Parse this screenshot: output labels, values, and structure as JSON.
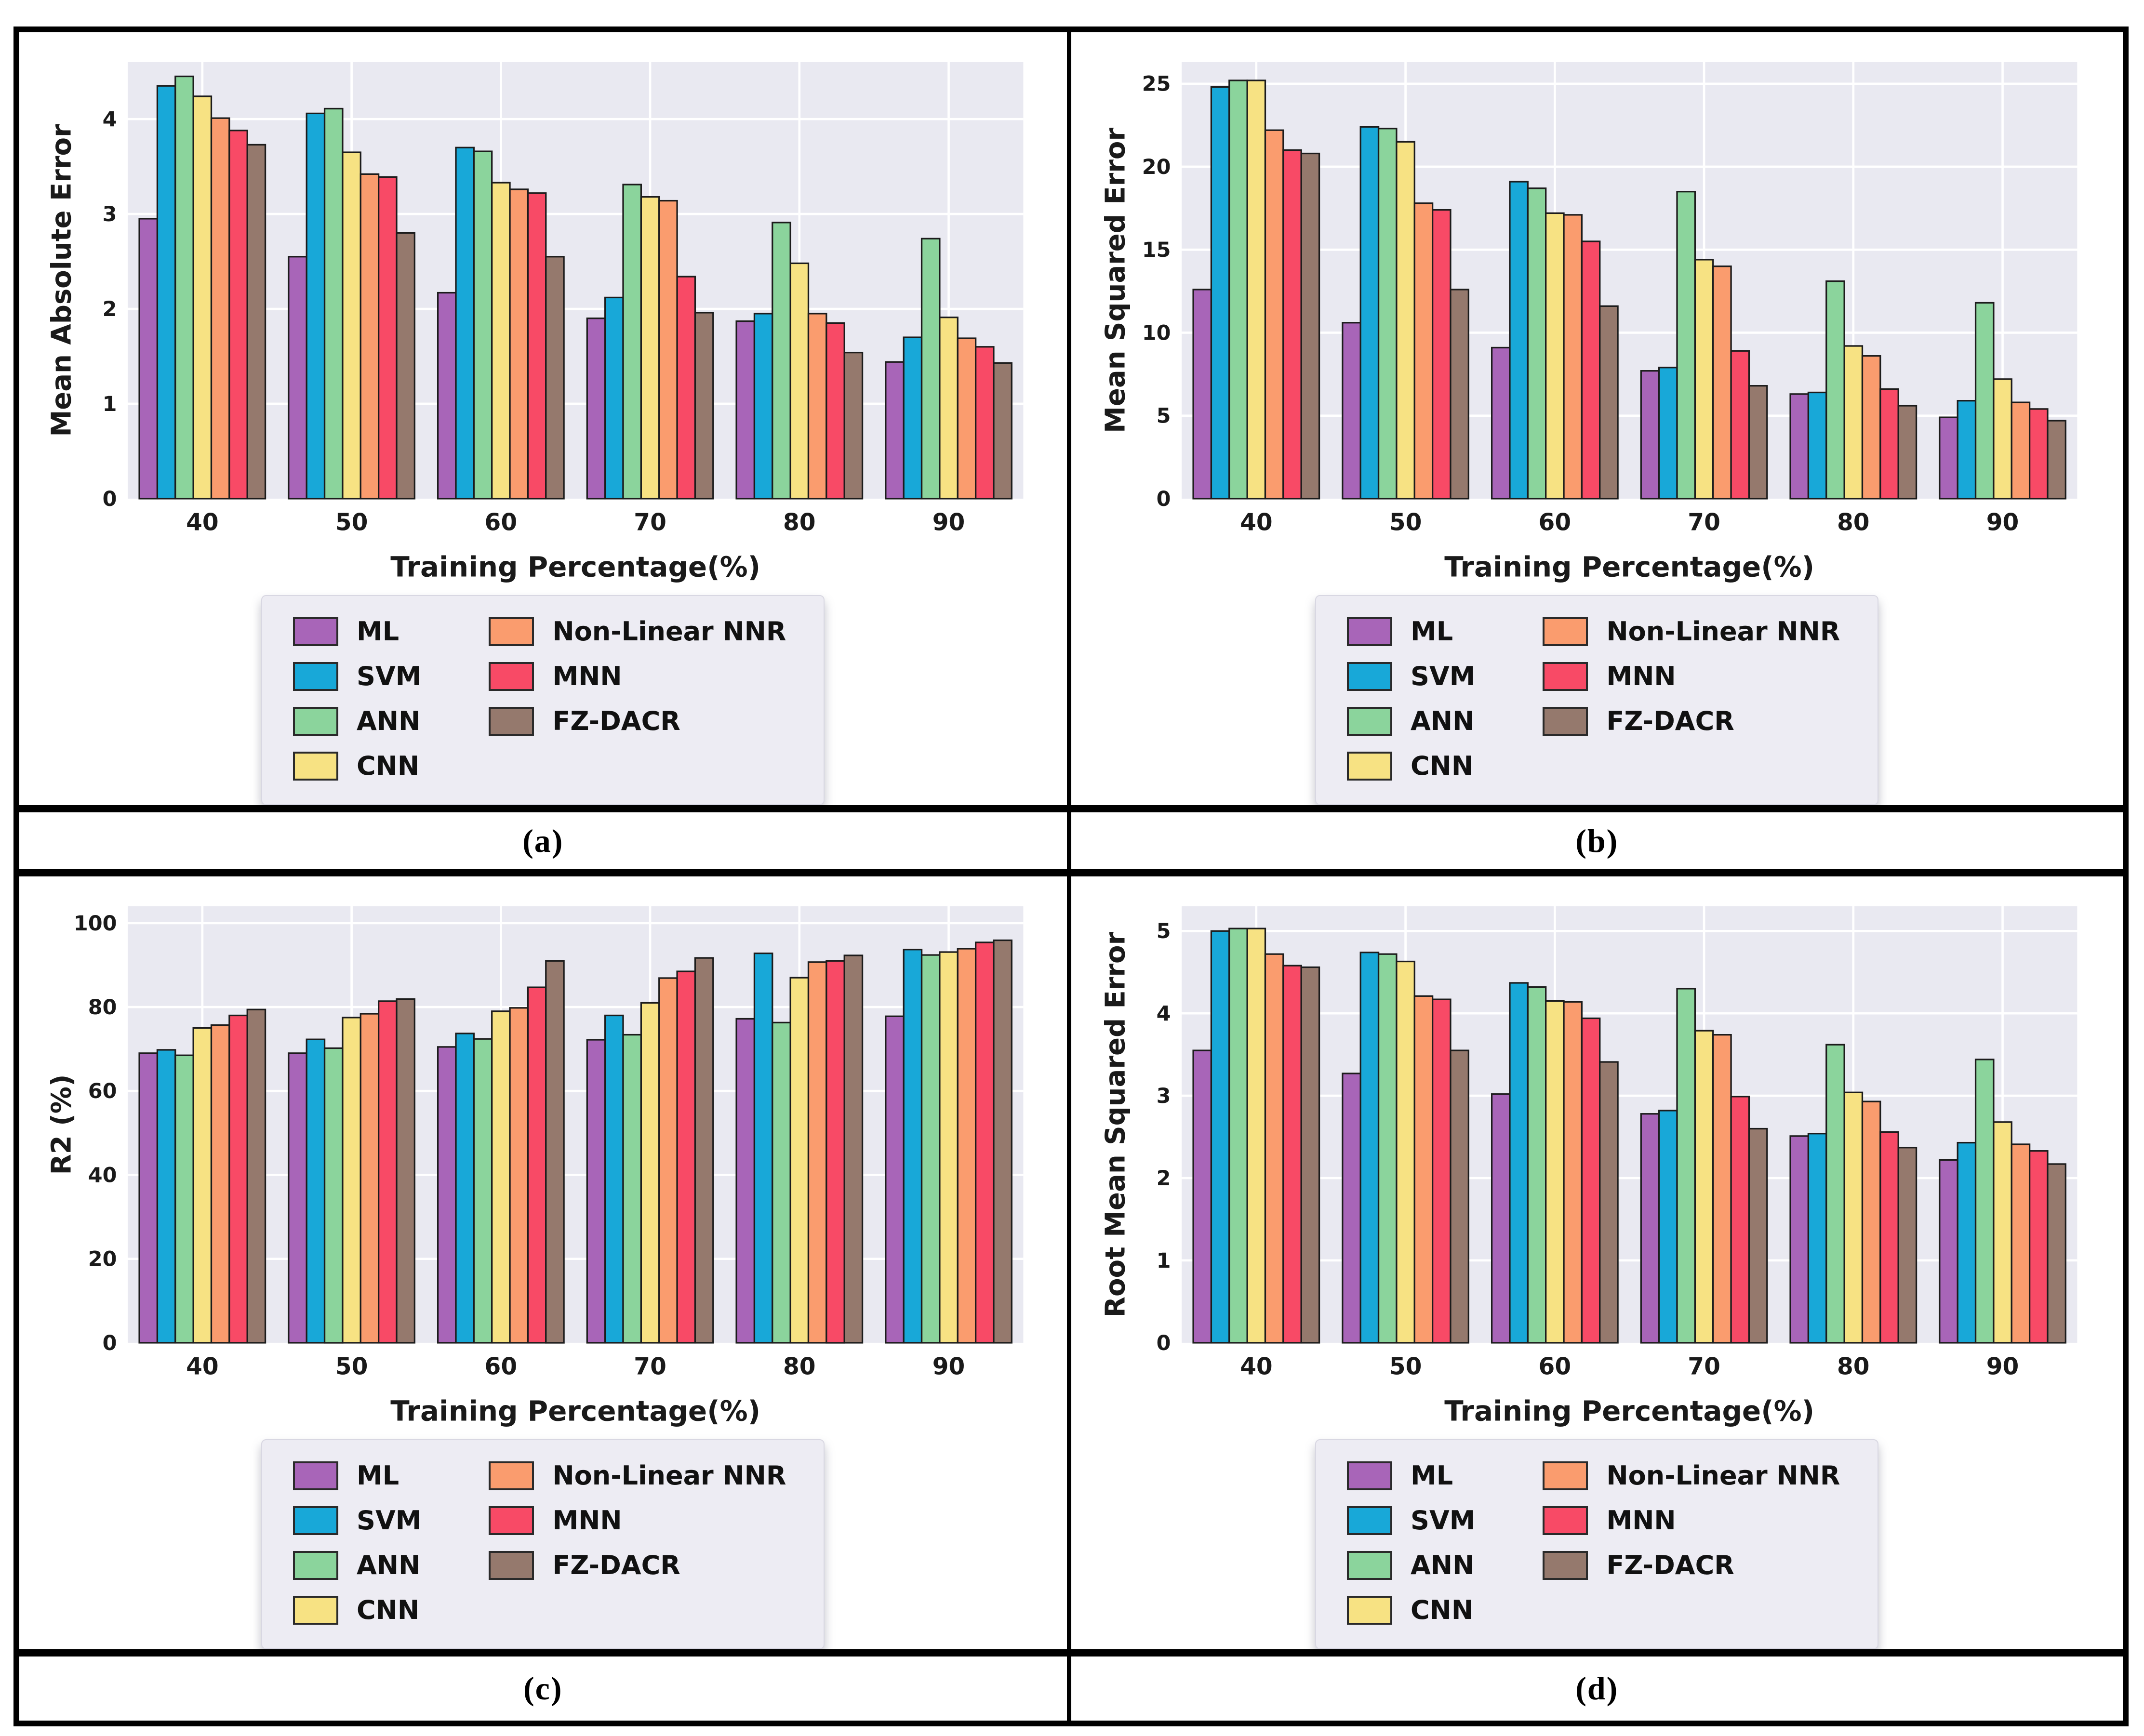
{
  "styles": {
    "plot_bg": "#e9e9f1",
    "grid_color": "#ffffff",
    "bar_edge": "#1c1c1c",
    "legend_bg": "#edecf3",
    "border_color": "#000000",
    "text_color": "#1a1a1a"
  },
  "legend": {
    "column1": [
      "ML",
      "SVM",
      "ANN",
      "CNN"
    ],
    "column2": [
      "Non-Linear NNR",
      "MNN",
      "FZ-DACR"
    ]
  },
  "chart_data": [
    {
      "type": "bar",
      "caption": "(a)",
      "ylabel": "Mean Absolute Error",
      "xlabel": "Training Percentage(%)",
      "categories": [
        "40",
        "50",
        "60",
        "70",
        "80",
        "90"
      ],
      "ylim": [
        0,
        4.6
      ],
      "yticks": [
        0,
        1,
        2,
        3,
        4
      ],
      "grid": true,
      "legend_position": "below",
      "series": [
        {
          "name": "ML",
          "color": "#a865b8",
          "values": [
            2.95,
            2.55,
            2.17,
            1.9,
            1.87,
            1.44
          ]
        },
        {
          "name": "SVM",
          "color": "#18a8d8",
          "values": [
            4.35,
            4.06,
            3.7,
            2.12,
            1.95,
            1.7
          ]
        },
        {
          "name": "ANN",
          "color": "#8bd49c",
          "values": [
            4.45,
            4.11,
            3.66,
            3.31,
            2.91,
            2.74
          ]
        },
        {
          "name": "CNN",
          "color": "#f7e283",
          "values": [
            4.24,
            3.65,
            3.33,
            3.18,
            2.48,
            1.91
          ]
        },
        {
          "name": "Non-Linear NNR",
          "color": "#fa9c6e",
          "values": [
            4.01,
            3.42,
            3.26,
            3.14,
            1.95,
            1.69
          ]
        },
        {
          "name": "MNN",
          "color": "#f84a66",
          "values": [
            3.88,
            3.39,
            3.22,
            2.34,
            1.85,
            1.6
          ]
        },
        {
          "name": "FZ-DACR",
          "color": "#95796d",
          "values": [
            3.73,
            2.8,
            2.55,
            1.96,
            1.54,
            1.43
          ]
        }
      ]
    },
    {
      "type": "bar",
      "caption": "(b)",
      "ylabel": "Mean Squared Error",
      "xlabel": "Training Percentage(%)",
      "categories": [
        "40",
        "50",
        "60",
        "70",
        "80",
        "90"
      ],
      "ylim": [
        0,
        26.3
      ],
      "yticks": [
        0,
        5,
        10,
        15,
        20,
        25
      ],
      "grid": true,
      "legend_position": "below",
      "series": [
        {
          "name": "ML",
          "color": "#a865b8",
          "values": [
            12.6,
            10.6,
            9.1,
            7.7,
            6.3,
            4.9
          ]
        },
        {
          "name": "SVM",
          "color": "#18a8d8",
          "values": [
            24.8,
            22.4,
            19.1,
            7.9,
            6.4,
            5.9
          ]
        },
        {
          "name": "ANN",
          "color": "#8bd49c",
          "values": [
            25.2,
            22.3,
            18.7,
            18.5,
            13.1,
            11.8
          ]
        },
        {
          "name": "CNN",
          "color": "#f7e283",
          "values": [
            25.2,
            21.5,
            17.2,
            14.4,
            9.2,
            7.2
          ]
        },
        {
          "name": "Non-Linear NNR",
          "color": "#fa9c6e",
          "values": [
            22.2,
            17.8,
            17.1,
            14.0,
            8.6,
            5.8
          ]
        },
        {
          "name": "MNN",
          "color": "#f84a66",
          "values": [
            21.0,
            17.4,
            15.5,
            8.9,
            6.6,
            5.4
          ]
        },
        {
          "name": "FZ-DACR",
          "color": "#95796d",
          "values": [
            20.8,
            12.6,
            11.6,
            6.8,
            5.6,
            4.7
          ]
        }
      ]
    },
    {
      "type": "bar",
      "caption": "(c)",
      "ylabel": "R2 (%)",
      "xlabel": "Training Percentage(%)",
      "categories": [
        "40",
        "50",
        "60",
        "70",
        "80",
        "90"
      ],
      "ylim": [
        0,
        104
      ],
      "yticks": [
        0,
        20,
        40,
        60,
        80,
        100
      ],
      "grid": true,
      "legend_position": "below",
      "series": [
        {
          "name": "ML",
          "color": "#a865b8",
          "values": [
            69.0,
            69.0,
            70.5,
            72.2,
            77.2,
            77.8
          ]
        },
        {
          "name": "SVM",
          "color": "#18a8d8",
          "values": [
            69.8,
            72.3,
            73.7,
            78.0,
            92.8,
            93.7
          ]
        },
        {
          "name": "ANN",
          "color": "#8bd49c",
          "values": [
            68.5,
            70.2,
            72.4,
            73.4,
            76.3,
            92.4
          ]
        },
        {
          "name": "CNN",
          "color": "#f7e283",
          "values": [
            75.0,
            77.5,
            79.0,
            81.0,
            87.0,
            93.1
          ]
        },
        {
          "name": "Non-Linear NNR",
          "color": "#fa9c6e",
          "values": [
            75.7,
            78.4,
            79.8,
            86.9,
            90.7,
            93.9
          ]
        },
        {
          "name": "MNN",
          "color": "#f84a66",
          "values": [
            78.0,
            81.4,
            84.7,
            88.5,
            91.0,
            95.4
          ]
        },
        {
          "name": "FZ-DACR",
          "color": "#95796d",
          "values": [
            79.4,
            81.9,
            91.0,
            91.7,
            92.3,
            95.9
          ]
        }
      ]
    },
    {
      "type": "bar",
      "caption": "(d)",
      "ylabel": "Root Mean Squared Error",
      "xlabel": "Training Percentage(%)",
      "categories": [
        "40",
        "50",
        "60",
        "70",
        "80",
        "90"
      ],
      "ylim": [
        0,
        5.3
      ],
      "yticks": [
        0,
        1,
        2,
        3,
        4,
        5
      ],
      "grid": true,
      "legend_position": "below",
      "series": [
        {
          "name": "ML",
          "color": "#a865b8",
          "values": [
            3.55,
            3.27,
            3.02,
            2.78,
            2.51,
            2.22
          ]
        },
        {
          "name": "SVM",
          "color": "#18a8d8",
          "values": [
            5.0,
            4.74,
            4.37,
            2.82,
            2.54,
            2.43
          ]
        },
        {
          "name": "ANN",
          "color": "#8bd49c",
          "values": [
            5.03,
            4.72,
            4.32,
            4.3,
            3.62,
            3.44
          ]
        },
        {
          "name": "CNN",
          "color": "#f7e283",
          "values": [
            5.03,
            4.63,
            4.15,
            3.79,
            3.04,
            2.68
          ]
        },
        {
          "name": "Non-Linear NNR",
          "color": "#fa9c6e",
          "values": [
            4.72,
            4.21,
            4.14,
            3.74,
            2.93,
            2.41
          ]
        },
        {
          "name": "MNN",
          "color": "#f84a66",
          "values": [
            4.58,
            4.17,
            3.94,
            2.99,
            2.56,
            2.33
          ]
        },
        {
          "name": "FZ-DACR",
          "color": "#95796d",
          "values": [
            4.56,
            3.55,
            3.41,
            2.6,
            2.37,
            2.17
          ]
        }
      ]
    }
  ]
}
